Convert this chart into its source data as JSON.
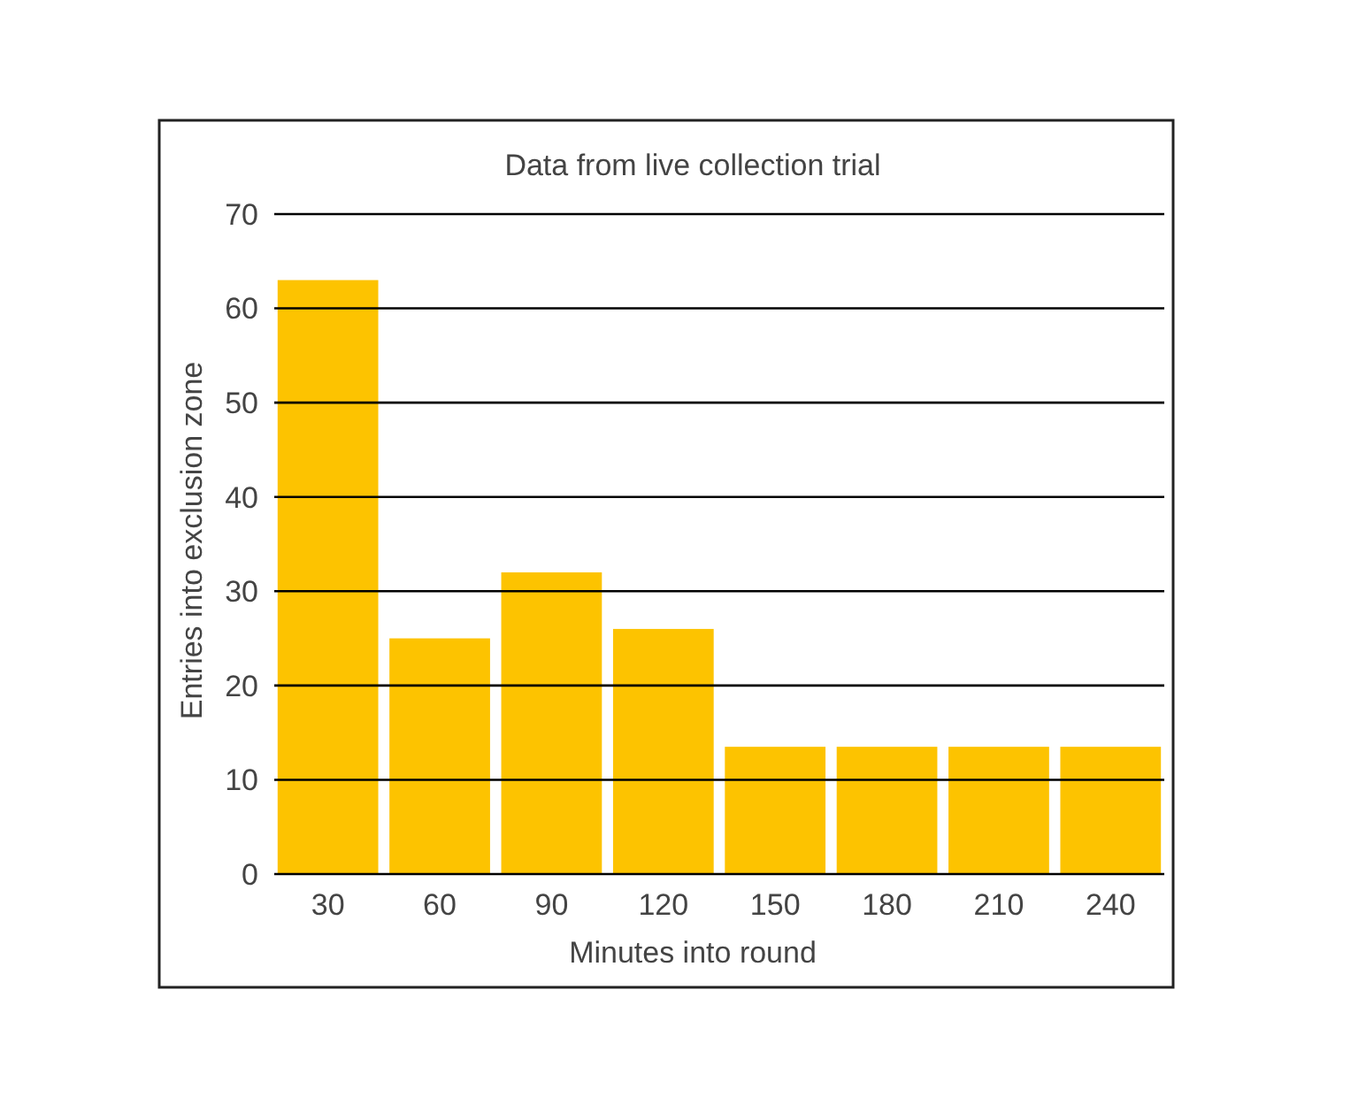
{
  "chart_data": {
    "type": "bar",
    "title": "Data from live collection trial",
    "xlabel": "Minutes into round",
    "ylabel": "Entries into exclusion zone",
    "categories": [
      "30",
      "60",
      "90",
      "120",
      "150",
      "180",
      "210",
      "240"
    ],
    "values": [
      63,
      25,
      32,
      26,
      13.5,
      13.5,
      13.5,
      13.5
    ],
    "color": "#fdc300",
    "ylim": [
      0,
      70
    ],
    "yticks": [
      0,
      10,
      20,
      30,
      40,
      50,
      60,
      70
    ],
    "grid": "y"
  }
}
